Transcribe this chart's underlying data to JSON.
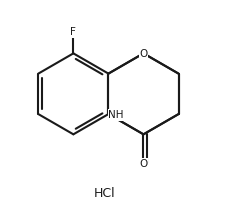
{
  "background_color": "#ffffff",
  "line_color": "#1a1a1a",
  "line_width": 1.5,
  "font_size_atoms": 7.5,
  "font_size_label": 9,
  "label_text": "HCl",
  "NH_label": "NH",
  "F_label": "F",
  "O_label": "O",
  "carbonyl_O_label": "O",
  "figsize": [
    2.29,
    2.14
  ],
  "dpi": 100
}
